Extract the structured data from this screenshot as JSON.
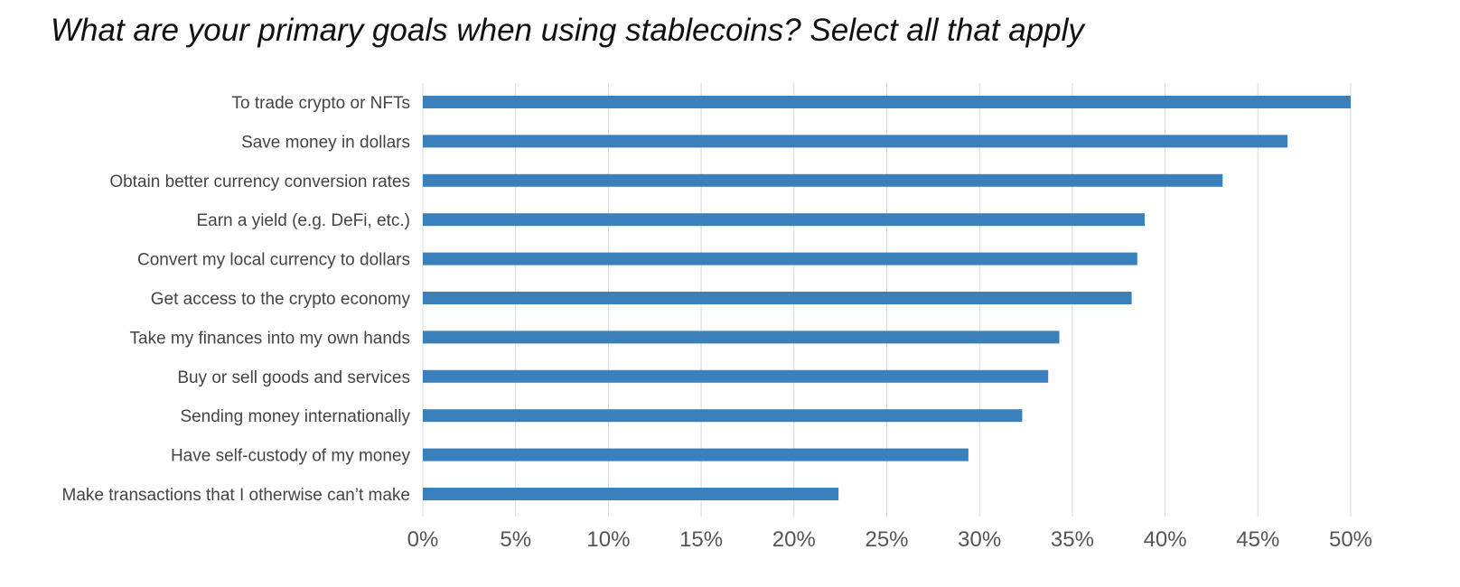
{
  "chart_data": {
    "type": "bar",
    "orientation": "horizontal",
    "title": "What are your primary goals when using stablecoins? Select all that apply",
    "xlabel": "",
    "ylabel": "",
    "categories": [
      "To trade crypto or NFTs",
      "Save money in dollars",
      "Obtain better currency conversion rates",
      "Earn a yield (e.g. DeFi, etc.)",
      "Convert my local currency to dollars",
      "Get access to the crypto economy",
      "Take my finances into my own hands",
      "Buy or sell goods and services",
      "Sending money internationally",
      "Have self-custody of my money",
      "Make transactions that I otherwise can’t make"
    ],
    "values": [
      50,
      46.6,
      43.1,
      38.9,
      38.5,
      38.2,
      34.3,
      33.7,
      32.3,
      29.4,
      22.4
    ],
    "xlim": [
      0,
      50
    ],
    "xticks": [
      0,
      5,
      10,
      15,
      20,
      25,
      30,
      35,
      40,
      45,
      50
    ],
    "tick_labels": [
      "0%",
      "5%",
      "10%",
      "15%",
      "20%",
      "25%",
      "30%",
      "35%",
      "40%",
      "45%",
      "50%"
    ],
    "grid": "vertical",
    "legend": "none",
    "bar_color": "#3a80bc",
    "grid_color": "#d9d9d9"
  }
}
